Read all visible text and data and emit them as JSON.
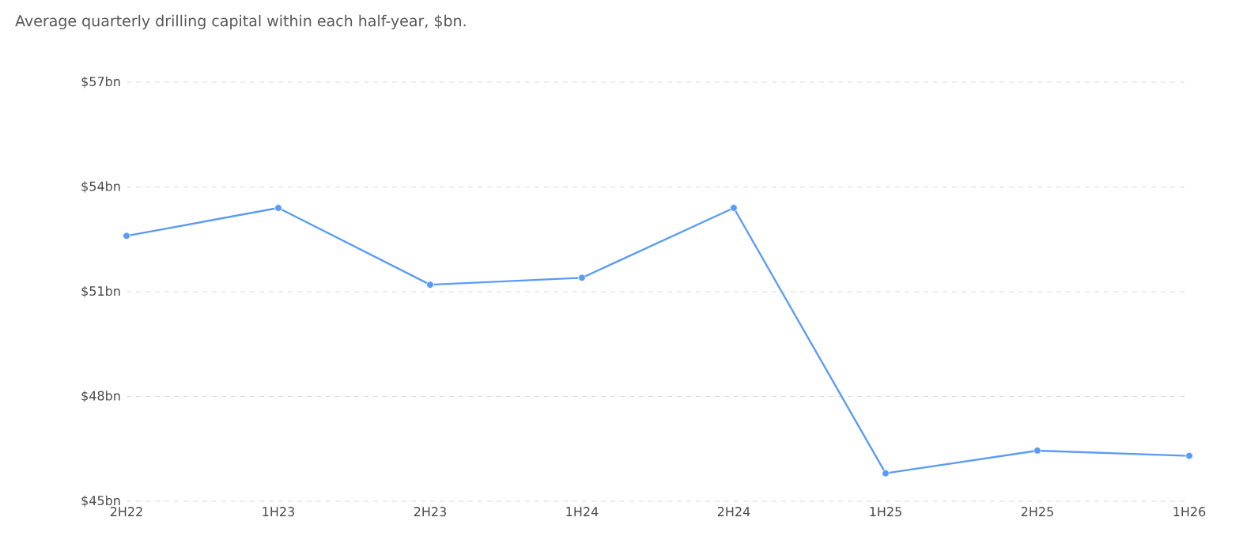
{
  "chart_data": {
    "type": "line",
    "title": "Average quarterly drilling capital within each half-year, $bn.",
    "categories": [
      "2H22",
      "1H23",
      "2H23",
      "1H24",
      "2H24",
      "1H25",
      "2H25",
      "1H26"
    ],
    "series": [
      {
        "color": "#5b9cf2",
        "values": [
          52.6,
          53.4,
          51.2,
          51.4,
          53.4,
          45.8,
          46.45,
          46.3
        ]
      }
    ],
    "ylim": [
      45,
      57
    ],
    "yticks": [
      {
        "value": 45,
        "label": "$45bn"
      },
      {
        "value": 48,
        "label": "$48bn"
      },
      {
        "value": 51,
        "label": "$51bn"
      },
      {
        "value": 54,
        "label": "$54bn"
      },
      {
        "value": 57,
        "label": "$57bn"
      }
    ],
    "grid": "y",
    "marker": "circle",
    "line_style": "solid"
  }
}
